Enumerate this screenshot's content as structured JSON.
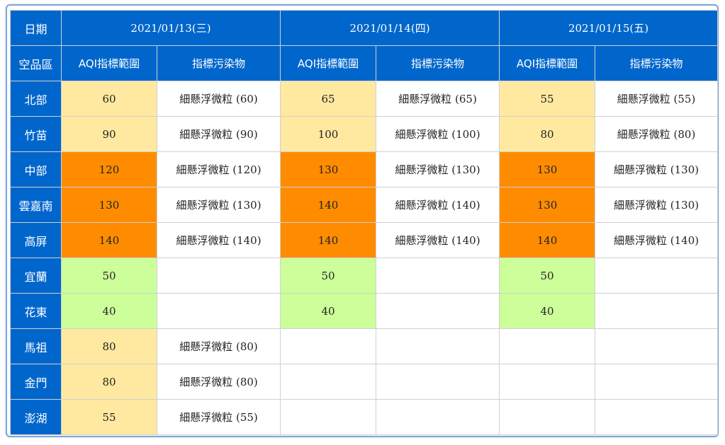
{
  "colors": {
    "header_bg": "#0066cc",
    "header_text": "#ffffff",
    "good": "#ccff99",
    "moderate": "#ffe9a0",
    "unhealthy_sensitive": "#ff8c00",
    "border": "#d0d0d0",
    "frame": "#7aa6dc"
  },
  "header": {
    "date_label": "日期",
    "region_label": "空品區",
    "aqi_range_label": "AQI指標範圍",
    "pollutant_label": "指標污染物",
    "dates": [
      "2021/01/13(三)",
      "2021/01/14(四)",
      "2021/01/15(五)"
    ]
  },
  "rows": [
    {
      "region": "北部",
      "days": [
        {
          "aqi": "60",
          "level": "moderate",
          "pollutant": "細懸浮微粒 (60)"
        },
        {
          "aqi": "65",
          "level": "moderate",
          "pollutant": "細懸浮微粒 (65)"
        },
        {
          "aqi": "55",
          "level": "moderate",
          "pollutant": "細懸浮微粒 (55)"
        }
      ]
    },
    {
      "region": "竹苗",
      "days": [
        {
          "aqi": "90",
          "level": "moderate",
          "pollutant": "細懸浮微粒 (90)"
        },
        {
          "aqi": "100",
          "level": "moderate",
          "pollutant": "細懸浮微粒 (100)"
        },
        {
          "aqi": "80",
          "level": "moderate",
          "pollutant": "細懸浮微粒 (80)"
        }
      ]
    },
    {
      "region": "中部",
      "days": [
        {
          "aqi": "120",
          "level": "usg",
          "pollutant": "細懸浮微粒 (120)"
        },
        {
          "aqi": "130",
          "level": "usg",
          "pollutant": "細懸浮微粒 (130)"
        },
        {
          "aqi": "130",
          "level": "usg",
          "pollutant": "細懸浮微粒 (130)"
        }
      ]
    },
    {
      "region": "雲嘉南",
      "days": [
        {
          "aqi": "130",
          "level": "usg",
          "pollutant": "細懸浮微粒 (130)"
        },
        {
          "aqi": "140",
          "level": "usg",
          "pollutant": "細懸浮微粒 (140)"
        },
        {
          "aqi": "130",
          "level": "usg",
          "pollutant": "細懸浮微粒 (130)"
        }
      ]
    },
    {
      "region": "高屏",
      "days": [
        {
          "aqi": "140",
          "level": "usg",
          "pollutant": "細懸浮微粒 (140)"
        },
        {
          "aqi": "140",
          "level": "usg",
          "pollutant": "細懸浮微粒 (140)"
        },
        {
          "aqi": "140",
          "level": "usg",
          "pollutant": "細懸浮微粒 (140)"
        }
      ]
    },
    {
      "region": "宜蘭",
      "days": [
        {
          "aqi": "50",
          "level": "good",
          "pollutant": ""
        },
        {
          "aqi": "50",
          "level": "good",
          "pollutant": ""
        },
        {
          "aqi": "50",
          "level": "good",
          "pollutant": ""
        }
      ]
    },
    {
      "region": "花東",
      "days": [
        {
          "aqi": "40",
          "level": "good",
          "pollutant": ""
        },
        {
          "aqi": "40",
          "level": "good",
          "pollutant": ""
        },
        {
          "aqi": "40",
          "level": "good",
          "pollutant": ""
        }
      ]
    },
    {
      "region": "馬祖",
      "days": [
        {
          "aqi": "80",
          "level": "moderate",
          "pollutant": "細懸浮微粒 (80)"
        },
        {
          "aqi": "",
          "level": "blank",
          "pollutant": ""
        },
        {
          "aqi": "",
          "level": "blank",
          "pollutant": ""
        }
      ]
    },
    {
      "region": "金門",
      "days": [
        {
          "aqi": "80",
          "level": "moderate",
          "pollutant": "細懸浮微粒 (80)"
        },
        {
          "aqi": "",
          "level": "blank",
          "pollutant": ""
        },
        {
          "aqi": "",
          "level": "blank",
          "pollutant": ""
        }
      ]
    },
    {
      "region": "澎湖",
      "days": [
        {
          "aqi": "55",
          "level": "moderate",
          "pollutant": "細懸浮微粒 (55)"
        },
        {
          "aqi": "",
          "level": "blank",
          "pollutant": ""
        },
        {
          "aqi": "",
          "level": "blank",
          "pollutant": ""
        }
      ]
    }
  ]
}
